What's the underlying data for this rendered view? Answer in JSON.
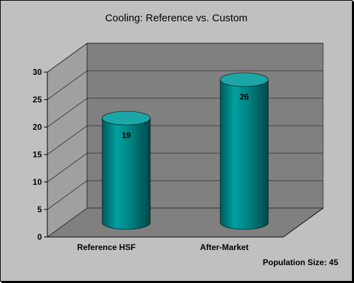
{
  "chart_data": {
    "type": "bar",
    "title": "Cooling: Reference vs. Custom",
    "xlabel": "",
    "ylabel": "",
    "categories": [
      "Reference HSF",
      "After-Market"
    ],
    "values": [
      19,
      26
    ],
    "data_labels": [
      "19",
      "26"
    ],
    "yticks": [
      "0",
      "5",
      "10",
      "15",
      "20",
      "25",
      "30"
    ],
    "ylim": [
      0,
      30
    ],
    "grid": true,
    "legend": "none",
    "style": "3d-cylinder",
    "colors": {
      "bar": "#008080",
      "bar_top": "#1aa6a6",
      "back_wall": "#808080",
      "side_wall": "#a0a0a0",
      "floor": "#808080",
      "chart_background": "#c0c0c0"
    },
    "annotation": "Population Size: 45"
  }
}
